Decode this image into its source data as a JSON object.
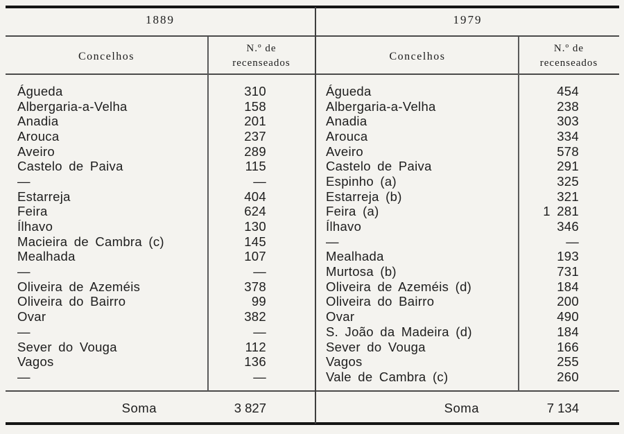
{
  "colors": {
    "background": "#f4f3ef",
    "text": "#1d1d1d",
    "rule_heavy": "#151515",
    "rule_light": "#4a4a4a"
  },
  "tables": [
    {
      "year": "1889",
      "concelhos_header": "Concelhos",
      "recenseados_header": [
        "N.º de",
        "recenseados"
      ],
      "rows": [
        [
          "Águeda",
          "310"
        ],
        [
          "Albergaria-a-Velha",
          "158"
        ],
        [
          "Anadia",
          "201"
        ],
        [
          "Arouca",
          "237"
        ],
        [
          "Aveiro",
          "289"
        ],
        [
          "Castelo de Paiva",
          "115"
        ],
        [
          "—",
          "—"
        ],
        [
          "Estarreja",
          "404"
        ],
        [
          "Feira",
          "624"
        ],
        [
          "Ílhavo",
          "130"
        ],
        [
          "Macieira de Cambra (c)",
          "145"
        ],
        [
          "Mealhada",
          "107"
        ],
        [
          "—",
          "—"
        ],
        [
          "Oliveira de Azeméis",
          "378"
        ],
        [
          "Oliveira do Bairro",
          "99"
        ],
        [
          "Ovar",
          "382"
        ],
        [
          "—",
          "—"
        ],
        [
          "Sever do Vouga",
          "112"
        ],
        [
          "Vagos",
          "136"
        ],
        [
          "—",
          "—"
        ]
      ],
      "soma_label": "Soma",
      "soma_value": "3 827"
    },
    {
      "year": "1979",
      "concelhos_header": "Concelhos",
      "recenseados_header": [
        "N.º de",
        "recenseados"
      ],
      "rows": [
        [
          "Águeda",
          "454"
        ],
        [
          "Albergaria-a-Velha",
          "238"
        ],
        [
          "Anadia",
          "303"
        ],
        [
          "Arouca",
          "334"
        ],
        [
          "Aveiro",
          "578"
        ],
        [
          "Castelo de Paiva",
          "291"
        ],
        [
          "Espinho (a)",
          "325"
        ],
        [
          "Estarreja (b)",
          "321"
        ],
        [
          "Feira (a)",
          "1 281"
        ],
        [
          "Ílhavo",
          "346"
        ],
        [
          "—",
          "—"
        ],
        [
          "Mealhada",
          "193"
        ],
        [
          "Murtosa (b)",
          "731"
        ],
        [
          "Oliveira de Azeméis (d)",
          "184"
        ],
        [
          "Oliveira do Bairro",
          "200"
        ],
        [
          "Ovar",
          "490"
        ],
        [
          "S. João da Madeira (d)",
          "184"
        ],
        [
          "Sever do Vouga",
          "166"
        ],
        [
          "Vagos",
          "255"
        ],
        [
          "Vale de Cambra (c)",
          "260"
        ]
      ],
      "soma_label": "Soma",
      "soma_value": "7 134"
    }
  ]
}
